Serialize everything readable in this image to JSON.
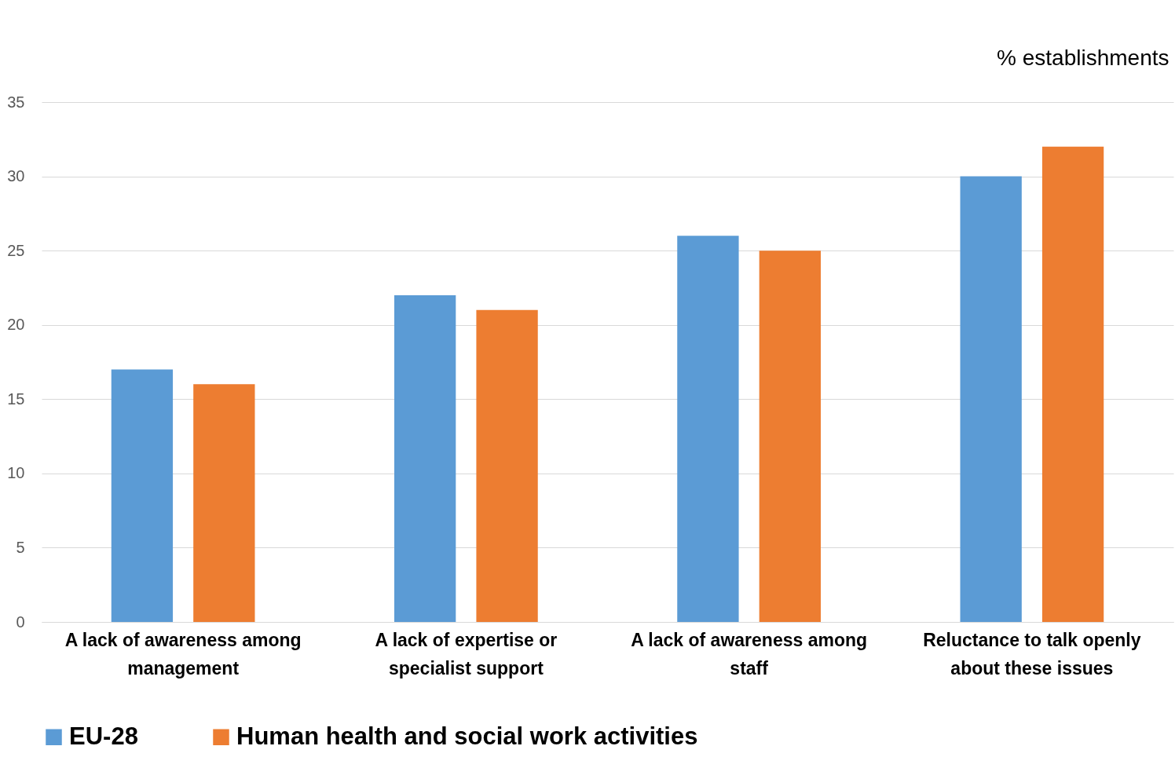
{
  "chart_data": {
    "type": "bar",
    "ylabel": "% establishments",
    "categories": [
      "A lack of awareness among management",
      "A lack of expertise or specialist support",
      "A lack of awareness among staff",
      "Reluctance to talk openly about these issues"
    ],
    "series": [
      {
        "name": "EU-28",
        "color": "#5b9bd5",
        "values": [
          17,
          22,
          26,
          30
        ]
      },
      {
        "name": "Human health and social work activities",
        "color": "#ed7d31",
        "values": [
          16,
          21,
          25,
          32
        ]
      }
    ],
    "ylim": [
      0,
      35
    ],
    "yticks": [
      0,
      5,
      10,
      15,
      20,
      25,
      30,
      35
    ],
    "grid": "y",
    "legend": "bottom"
  }
}
